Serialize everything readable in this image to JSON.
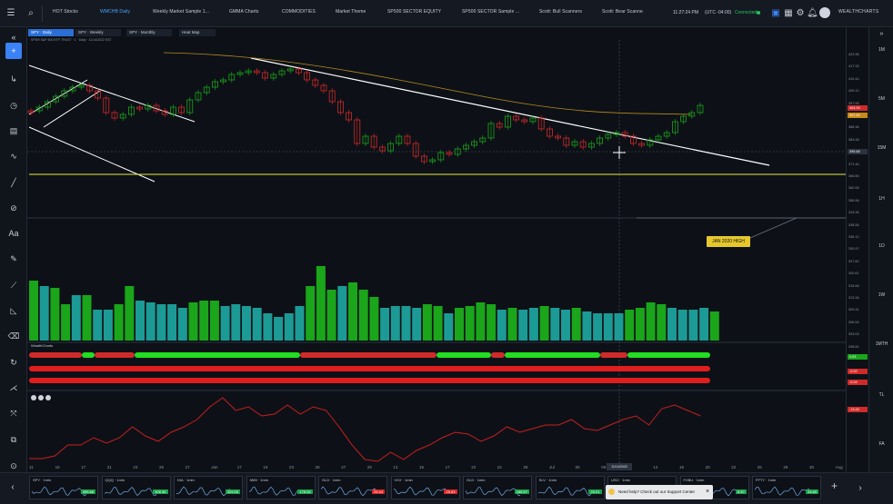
{
  "topbar": {
    "tabs": [
      {
        "label": "HOT Stocks",
        "active": false
      },
      {
        "label": "WMCHB Daily",
        "active": true
      },
      {
        "label": "Weekly Market Sample 1...",
        "active": false
      },
      {
        "label": "GMMA Charts",
        "active": false
      },
      {
        "label": "COMMODITIES",
        "active": false
      },
      {
        "label": "Market Theme",
        "active": false
      },
      {
        "label": "SP500 SECTOR EQUITY",
        "active": false
      },
      {
        "label": "SP500 SECTOR Sample ...",
        "active": false
      },
      {
        "label": "Scott: Bull Scanners",
        "active": false
      },
      {
        "label": "Scott: Bear Scanne",
        "active": false
      }
    ],
    "clock": "11:27:24 PM",
    "timezone": "(UTC -04:00)",
    "connection": "Connected",
    "brand": "WEALTHCHARTS"
  },
  "subtabs": [
    {
      "label": "SPY · Daily",
      "active": true
    },
    {
      "label": "SPY · Weekly",
      "active": false
    },
    {
      "label": "SPY · Monthly",
      "active": false
    },
    {
      "label": "Heat Map",
      "active": false
    }
  ],
  "symbol_line": "SPDR S&P 500 ETF TRUST · 1 · Daily · 11/14/2022 EST",
  "price_axis": {
    "labels": [
      "423.36",
      "417.33",
      "410.44",
      "405.12",
      "397.95",
      "391.04",
      "388.36",
      "384.48",
      "378.98",
      "371.46",
      "366.56",
      "360.06",
      "356.96",
      "343.36",
      "338.56",
      "336.12",
      "330.97",
      "327.60",
      "320.61",
      "315.66",
      "313.34",
      "309.31",
      "306.54",
      "303.03",
      "298.81",
      "291.80",
      "290.40",
      "283.34"
    ],
    "current_tag": "395.68",
    "tag_red": "404.09",
    "tag_orange": "401.44"
  },
  "callout": "JAN 2020 HIGH",
  "indicator_label": "WealthCharts",
  "right_axis_tags": {
    "green": "0.03",
    "red1": "-0.02",
    "red2": "-0.04",
    "red3": "-13.43"
  },
  "dates": [
    "11",
    "15",
    "17",
    "21",
    "23",
    "25",
    "27",
    "Jan",
    "17",
    "19",
    "23",
    "25",
    "27",
    "29",
    "13",
    "15",
    "17",
    "22",
    "24",
    "28",
    "Jul",
    "06",
    "09",
    "12",
    "14",
    "16",
    "20",
    "22",
    "26",
    "28",
    "30",
    "Aug"
  ],
  "date_tag": "11/14/2022",
  "timeframes": [
    "1M",
    "5M",
    "15M",
    "1H",
    "1D",
    "1W",
    "1MTH",
    "TL",
    "FA",
    "HI"
  ],
  "minicharts": [
    {
      "sym": "SPY · 1min",
      "price": "395.68",
      "color": "#16a34a"
    },
    {
      "sym": "QQQ · 1min",
      "price": "306.36",
      "color": "#16a34a"
    },
    {
      "sym": "DIA · 1min",
      "price": "329.05",
      "color": "#16a34a"
    },
    {
      "sym": "IWM · 1min",
      "price": "178.28",
      "color": "#16a34a"
    },
    {
      "sym": "GLD · 1min",
      "price": "25.44",
      "color": "#dc2626"
    },
    {
      "sym": "VXX · 1min",
      "price": "25.63",
      "color": "#dc2626"
    },
    {
      "sym": "GLD · 1min",
      "price": "168.57",
      "color": "#16a34a"
    },
    {
      "sym": "SLV · 1min",
      "price": "20.21",
      "color": "#16a34a"
    },
    {
      "sym": "USO · 1min",
      "price": "",
      "color": "#16a34a"
    },
    {
      "sym": "FXBU · 1min",
      "price": "8.20",
      "color": "#16a34a"
    },
    {
      "sym": "FFTY · 1min",
      "price": "33.80",
      "color": "#16a34a"
    }
  ],
  "help_popup": "Need help? Check out our Support Center",
  "colors": {
    "bull": "#1aa51a",
    "bear": "#d12a2a",
    "volume_bull": "#1aa51a",
    "volume_bear": "#1c9a95",
    "trendline": "#ffffff",
    "support": "#e6e94a",
    "accent": "#3b82f6"
  }
}
